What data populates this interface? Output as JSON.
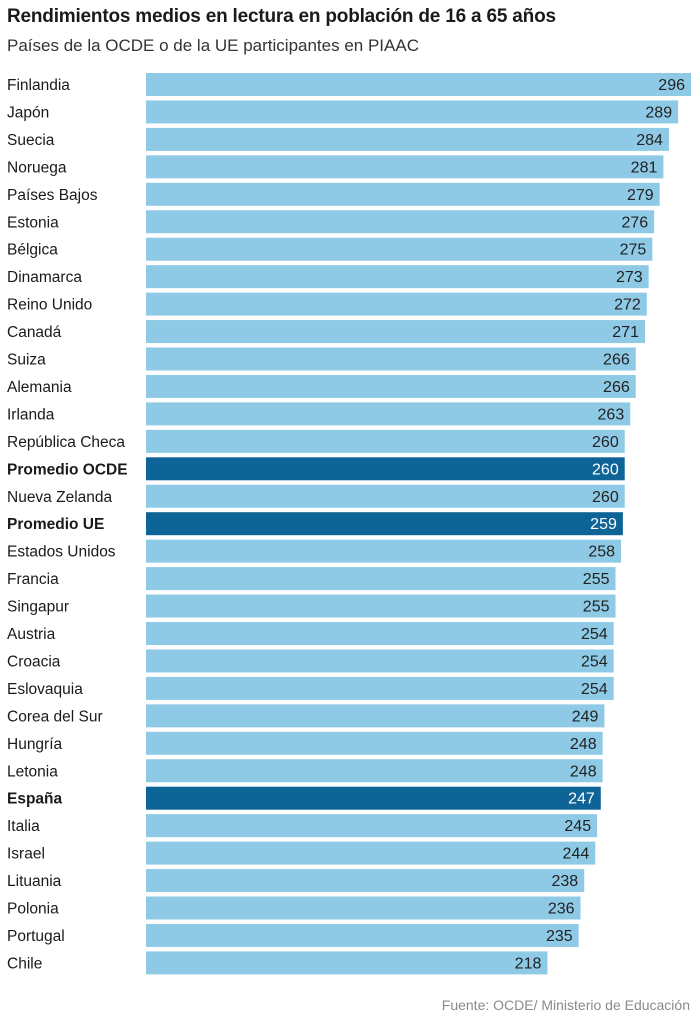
{
  "chart_data": {
    "type": "bar",
    "orientation": "horizontal",
    "title": "Rendimientos medios en lectura en población de 16 a 65 años",
    "subtitle": "Países de la OCDE o de la UE participantes en PIAAC",
    "source": "Fuente: OCDE/ Ministerio de Educación",
    "xlim": [
      0,
      296
    ],
    "grid": false,
    "colors": {
      "default_bar": "#8ecae6",
      "highlight_bar": "#0e6496",
      "default_label": "#222222",
      "highlight_label": "#ffffff"
    },
    "categories": [
      "Finlandia",
      "Japón",
      "Suecia",
      "Noruega",
      "Países Bajos",
      "Estonia",
      "Bélgica",
      "Dinamarca",
      "Reino Unido",
      "Canadá",
      "Suiza",
      "Alemania",
      "Irlanda",
      "República Checa",
      "Promedio OCDE",
      "Nueva Zelanda",
      "Promedio UE",
      "Estados Unidos",
      "Francia",
      "Singapur",
      "Austria",
      "Croacia",
      "Eslovaquia",
      "Corea del Sur",
      "Hungría",
      "Letonia",
      "España",
      "Italia",
      "Israel",
      "Lituania",
      "Polonia",
      "Portugal",
      "Chile"
    ],
    "values": [
      296,
      289,
      284,
      281,
      279,
      276,
      275,
      273,
      272,
      271,
      266,
      266,
      263,
      260,
      260,
      260,
      259,
      258,
      255,
      255,
      254,
      254,
      254,
      249,
      248,
      248,
      247,
      245,
      244,
      238,
      236,
      235,
      218
    ],
    "highlighted": [
      "Promedio OCDE",
      "Promedio UE",
      "España"
    ]
  }
}
